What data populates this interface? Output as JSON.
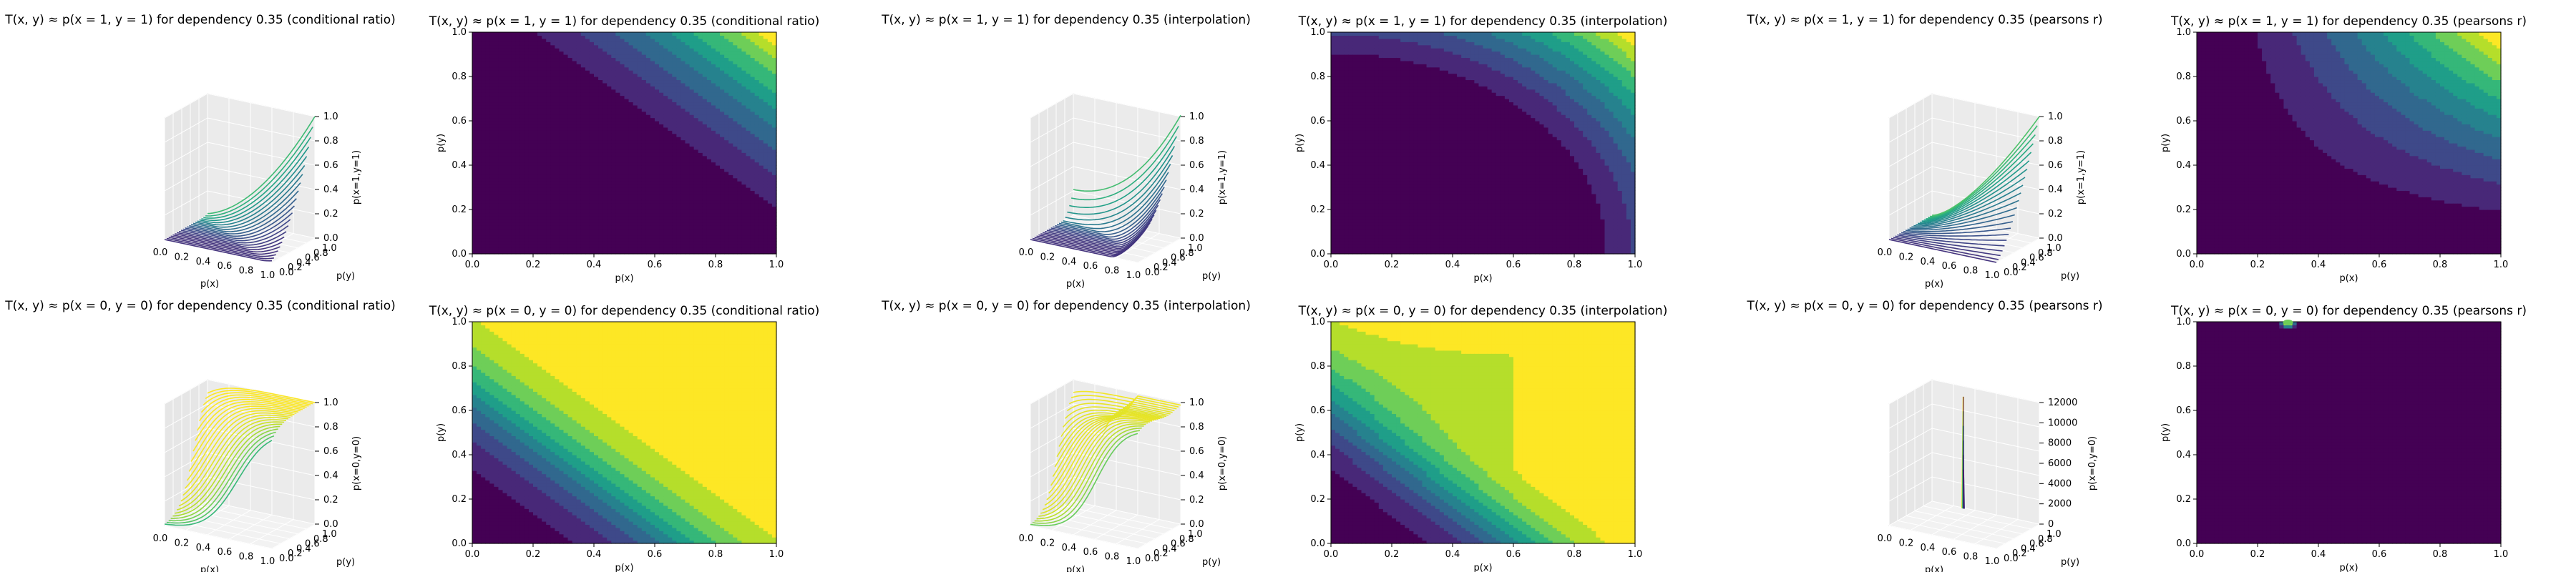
{
  "figure": {
    "background": "#ffffff",
    "colormap": [
      "#440154",
      "#482878",
      "#3e4989",
      "#31688e",
      "#26828e",
      "#1f9e89",
      "#35b779",
      "#6ece58",
      "#b5de2b",
      "#fde725"
    ]
  },
  "chart_data": [
    {
      "id": "c1",
      "type": "surface3d",
      "method": "conditional ratio",
      "target": "p(x=1,y=1)",
      "title": "T(x, y) ≈ p(x = 1, y = 1) for dependency 0.35 (conditional ratio)",
      "xlabel": "p(x)",
      "ylabel": "p(y)",
      "zlabel": "p(x=1,y=1)",
      "xticks": [
        "0.0",
        "0.2",
        "0.4",
        "0.6",
        "0.8",
        "1.0"
      ],
      "yticks": [
        "0.0",
        "0.2",
        "0.4",
        "0.6",
        "0.8",
        "1.0"
      ],
      "zticks": [
        "0.0",
        "0.2",
        "0.4",
        "0.6",
        "0.8",
        "1.0"
      ],
      "zlim": [
        0,
        1
      ],
      "grid": true
    },
    {
      "id": "c2",
      "type": "contourf",
      "method": "conditional ratio",
      "target": "p(x=1,y=1)",
      "title": "T(x, y) ≈ p(x = 1, y = 1) for dependency 0.35 (conditional ratio)",
      "xlabel": "p(x)",
      "ylabel": "p(y)",
      "xticks": [
        "0.0",
        "0.2",
        "0.4",
        "0.6",
        "0.8",
        "1.0"
      ],
      "yticks": [
        "0.0",
        "0.2",
        "0.4",
        "0.6",
        "0.8",
        "1.0"
      ],
      "xlim": [
        0,
        1
      ],
      "ylim": [
        0,
        1
      ],
      "levels": 10,
      "value_range": [
        0,
        1
      ]
    },
    {
      "id": "c3",
      "type": "surface3d",
      "method": "interpolation",
      "target": "p(x=1,y=1)",
      "title": "T(x, y) ≈ p(x = 1, y = 1) for dependency 0.35 (interpolation)",
      "xlabel": "p(x)",
      "ylabel": "p(y)",
      "zlabel": "p(x=1,y=1)",
      "xticks": [
        "0.0",
        "0.2",
        "0.4",
        "0.6",
        "0.8",
        "1.0"
      ],
      "yticks": [
        "0.0",
        "0.2",
        "0.4",
        "0.6",
        "0.8",
        "1.0"
      ],
      "zticks": [
        "0.0",
        "0.2",
        "0.4",
        "0.6",
        "0.8",
        "1.0"
      ],
      "zlim": [
        0,
        1
      ],
      "grid": true
    },
    {
      "id": "c4",
      "type": "contourf",
      "method": "interpolation",
      "target": "p(x=1,y=1)",
      "title": "T(x, y) ≈ p(x = 1, y = 1) for dependency 0.35 (interpolation)",
      "xlabel": "p(x)",
      "ylabel": "p(y)",
      "xticks": [
        "0.0",
        "0.2",
        "0.4",
        "0.6",
        "0.8",
        "1.0"
      ],
      "yticks": [
        "0.0",
        "0.2",
        "0.4",
        "0.6",
        "0.8",
        "1.0"
      ],
      "xlim": [
        0,
        1
      ],
      "ylim": [
        0,
        1
      ],
      "levels": 10,
      "value_range": [
        0,
        1
      ]
    },
    {
      "id": "c5",
      "type": "surface3d",
      "method": "pearsons r",
      "target": "p(x=1,y=1)",
      "title": "T(x, y) ≈ p(x = 1, y = 1) for dependency 0.35 (pearsons r)",
      "xlabel": "p(x)",
      "ylabel": "p(y)",
      "zlabel": "p(x=1,y=1)",
      "xticks": [
        "0.0",
        "0.2",
        "0.4",
        "0.6",
        "0.8",
        "1.0"
      ],
      "yticks": [
        "0.0",
        "0.2",
        "0.4",
        "0.6",
        "0.8",
        "1.0"
      ],
      "zticks": [
        "0.0",
        "0.2",
        "0.4",
        "0.6",
        "0.8",
        "1.0"
      ],
      "zlim": [
        0,
        1
      ],
      "grid": true
    },
    {
      "id": "c6",
      "type": "contourf",
      "method": "pearsons r",
      "target": "p(x=1,y=1)",
      "title": "T(x, y) ≈ p(x = 1, y = 1) for dependency 0.35 (pearsons r)",
      "xlabel": "p(x)",
      "ylabel": "p(y)",
      "xticks": [
        "0.0",
        "0.2",
        "0.4",
        "0.6",
        "0.8",
        "1.0"
      ],
      "yticks": [
        "0.0",
        "0.2",
        "0.4",
        "0.6",
        "0.8",
        "1.0"
      ],
      "xlim": [
        0,
        1
      ],
      "ylim": [
        0,
        1
      ],
      "levels": 10,
      "value_range": [
        0,
        1
      ]
    },
    {
      "id": "c7",
      "type": "surface3d",
      "method": "conditional ratio",
      "target": "p(x=0,y=0)",
      "title": "T(x, y) ≈ p(x = 0, y = 0) for dependency 0.35 (conditional ratio)",
      "xlabel": "p(x)",
      "ylabel": "p(y)",
      "zlabel": "p(x=0,y=0)",
      "xticks": [
        "0.0",
        "0.2",
        "0.4",
        "0.6",
        "0.8",
        "1.0"
      ],
      "yticks": [
        "0.0",
        "0.2",
        "0.4",
        "0.6",
        "0.8",
        "1.0"
      ],
      "zticks": [
        "0.0",
        "0.2",
        "0.4",
        "0.6",
        "0.8",
        "1.0"
      ],
      "zlim": [
        0,
        1
      ],
      "grid": true
    },
    {
      "id": "c8",
      "type": "contourf",
      "method": "conditional ratio",
      "target": "p(x=0,y=0)",
      "title": "T(x, y) ≈ p(x = 0, y = 0) for dependency 0.35 (conditional ratio)",
      "xlabel": "p(x)",
      "ylabel": "p(y)",
      "xticks": [
        "0.0",
        "0.2",
        "0.4",
        "0.6",
        "0.8",
        "1.0"
      ],
      "yticks": [
        "0.0",
        "0.2",
        "0.4",
        "0.6",
        "0.8",
        "1.0"
      ],
      "xlim": [
        0,
        1
      ],
      "ylim": [
        0,
        1
      ],
      "levels": 10,
      "value_range": [
        0,
        1
      ]
    },
    {
      "id": "c9",
      "type": "surface3d",
      "method": "interpolation",
      "target": "p(x=0,y=0)",
      "title": "T(x, y) ≈ p(x = 0, y = 0) for dependency 0.35 (interpolation)",
      "xlabel": "p(x)",
      "ylabel": "p(y)",
      "zlabel": "p(x=0,y=0)",
      "xticks": [
        "0.0",
        "0.2",
        "0.4",
        "0.6",
        "0.8",
        "1.0"
      ],
      "yticks": [
        "0.0",
        "0.2",
        "0.4",
        "0.6",
        "0.8",
        "1.0"
      ],
      "zticks": [
        "0.0",
        "0.2",
        "0.4",
        "0.6",
        "0.8",
        "1.0"
      ],
      "zlim": [
        0,
        1
      ],
      "grid": true
    },
    {
      "id": "c10",
      "type": "contourf",
      "method": "interpolation",
      "target": "p(x=0,y=0)",
      "title": "T(x, y) ≈ p(x = 0, y = 0) for dependency 0.35 (interpolation)",
      "xlabel": "p(x)",
      "ylabel": "p(y)",
      "xticks": [
        "0.0",
        "0.2",
        "0.4",
        "0.6",
        "0.8",
        "1.0"
      ],
      "yticks": [
        "0.0",
        "0.2",
        "0.4",
        "0.6",
        "0.8",
        "1.0"
      ],
      "xlim": [
        0,
        1
      ],
      "ylim": [
        0,
        1
      ],
      "levels": 10,
      "value_range": [
        0,
        1
      ]
    },
    {
      "id": "c11",
      "type": "surface3d",
      "method": "pearsons r",
      "target": "p(x=0,y=0)",
      "title": "T(x, y) ≈ p(x = 0, y = 0) for dependency 0.35 (pearsons r)",
      "xlabel": "p(x)",
      "ylabel": "p(y)",
      "zlabel": "p(x=0,y=0)",
      "xticks": [
        "0.0",
        "0.2",
        "0.4",
        "0.6",
        "0.8",
        "1.0"
      ],
      "yticks": [
        "0.0",
        "0.2",
        "0.4",
        "0.6",
        "0.8",
        "1.0"
      ],
      "zticks": [
        "0",
        "2000",
        "4000",
        "6000",
        "8000",
        "10000",
        "12000"
      ],
      "zlim": [
        0,
        13000
      ],
      "grid": true,
      "annotation": "narrow spike near p(x)≈0.3, p(y)≈1.0"
    },
    {
      "id": "c12",
      "type": "contourf",
      "method": "pearsons r",
      "target": "p(x=0,y=0)",
      "title": "T(x, y) ≈ p(x = 0, y = 0) for dependency 0.35 (pearsons r)",
      "xlabel": "p(x)",
      "ylabel": "p(y)",
      "xticks": [
        "0.0",
        "0.2",
        "0.4",
        "0.6",
        "0.8",
        "1.0"
      ],
      "yticks": [
        "0.0",
        "0.2",
        "0.4",
        "0.6",
        "0.8",
        "1.0"
      ],
      "xlim": [
        0,
        1
      ],
      "ylim": [
        0,
        1
      ],
      "levels": 10,
      "value_range": [
        0,
        13000
      ],
      "annotation": "nearly uniform lowest level; small bright spot at top edge near p(x)≈0.3"
    }
  ]
}
